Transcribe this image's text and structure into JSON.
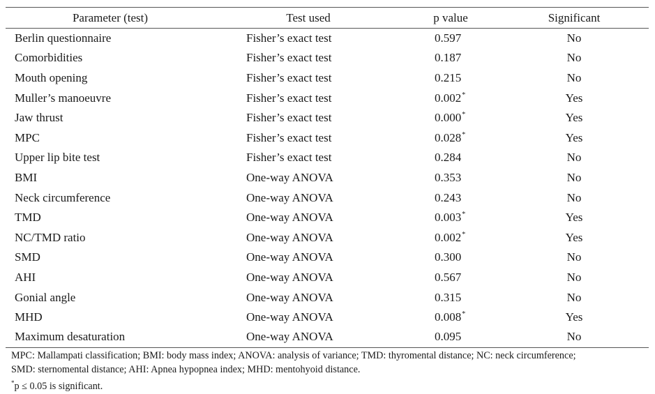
{
  "table": {
    "columns": [
      "Parameter (test)",
      "Test used",
      "p value",
      "Significant"
    ],
    "rows": [
      {
        "parameter": "Berlin questionnaire",
        "test": "Fisher’s exact test",
        "p": "0.597",
        "star": "",
        "significant": "No"
      },
      {
        "parameter": "Comorbidities",
        "test": "Fisher’s exact test",
        "p": "0.187",
        "star": "",
        "significant": "No"
      },
      {
        "parameter": "Mouth opening",
        "test": "Fisher’s exact test",
        "p": "0.215",
        "star": "",
        "significant": "No"
      },
      {
        "parameter": "Muller’s manoeuvre",
        "test": "Fisher’s exact test",
        "p": "0.002",
        "star": "*",
        "significant": "Yes"
      },
      {
        "parameter": "Jaw thrust",
        "test": "Fisher’s exact test",
        "p": "0.000",
        "star": "*",
        "significant": "Yes"
      },
      {
        "parameter": "MPC",
        "test": "Fisher’s exact test",
        "p": "0.028",
        "star": "*",
        "significant": "Yes"
      },
      {
        "parameter": "Upper lip bite test",
        "test": "Fisher’s exact test",
        "p": "0.284",
        "star": "",
        "significant": "No"
      },
      {
        "parameter": "BMI",
        "test": "One-way ANOVA",
        "p": "0.353",
        "star": "",
        "significant": "No"
      },
      {
        "parameter": "Neck circumference",
        "test": "One-way ANOVA",
        "p": "0.243",
        "star": "",
        "significant": "No"
      },
      {
        "parameter": "TMD",
        "test": "One-way ANOVA",
        "p": "0.003",
        "star": "*",
        "significant": "Yes"
      },
      {
        "parameter": "NC/TMD ratio",
        "test": "One-way ANOVA",
        "p": "0.002",
        "star": "*",
        "significant": "Yes"
      },
      {
        "parameter": "SMD",
        "test": "One-way ANOVA",
        "p": "0.300",
        "star": "",
        "significant": "No"
      },
      {
        "parameter": "AHI",
        "test": "One-way ANOVA",
        "p": "0.567",
        "star": "",
        "significant": "No"
      },
      {
        "parameter": "Gonial angle",
        "test": "One-way ANOVA",
        "p": "0.315",
        "star": "",
        "significant": "No"
      },
      {
        "parameter": "MHD",
        "test": "One-way ANOVA",
        "p": "0.008",
        "star": "*",
        "significant": "Yes"
      },
      {
        "parameter": "Maximum desaturation",
        "test": "One-way ANOVA",
        "p": "0.095",
        "star": "",
        "significant": "No"
      }
    ]
  },
  "footnotes": {
    "abbrev_line1": "MPC: Mallampati classification; BMI: body mass index; ANOVA: analysis of variance; TMD: thyromental distance; NC: neck circumference;",
    "abbrev_line2": "SMD: sternomental distance; AHI: Apnea hypopnea index; MHD: mentohyoid distance.",
    "sig_mark": "*",
    "sig_text": "p ≤ 0.05 is significant."
  }
}
